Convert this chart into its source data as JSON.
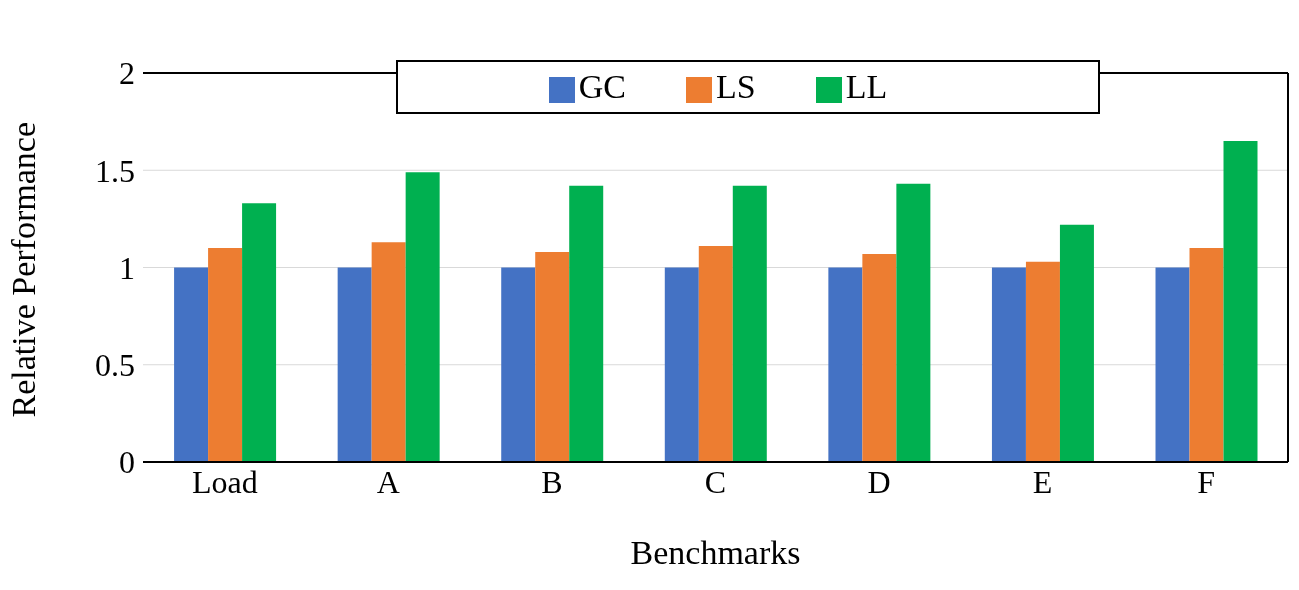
{
  "chart_data": {
    "type": "bar",
    "xlabel": "Benchmarks",
    "ylabel": "Relative Performance",
    "categories": [
      "Load",
      "A",
      "B",
      "C",
      "D",
      "E",
      "F"
    ],
    "series": [
      {
        "name": "GC",
        "color": "#4472c4",
        "values": [
          1,
          1,
          1,
          1,
          1,
          1,
          1
        ]
      },
      {
        "name": "LS",
        "color": "#ed7d31",
        "values": [
          1.1,
          1.13,
          1.08,
          1.11,
          1.07,
          1.03,
          1.1
        ]
      },
      {
        "name": "LL",
        "color": "#00b050",
        "values": [
          1.33,
          1.49,
          1.42,
          1.42,
          1.43,
          1.22,
          1.65
        ]
      }
    ],
    "ylim": [
      0,
      2
    ],
    "yticks": [
      0,
      0.5,
      1,
      1.5,
      2
    ],
    "grid": "y",
    "legend": "top"
  }
}
